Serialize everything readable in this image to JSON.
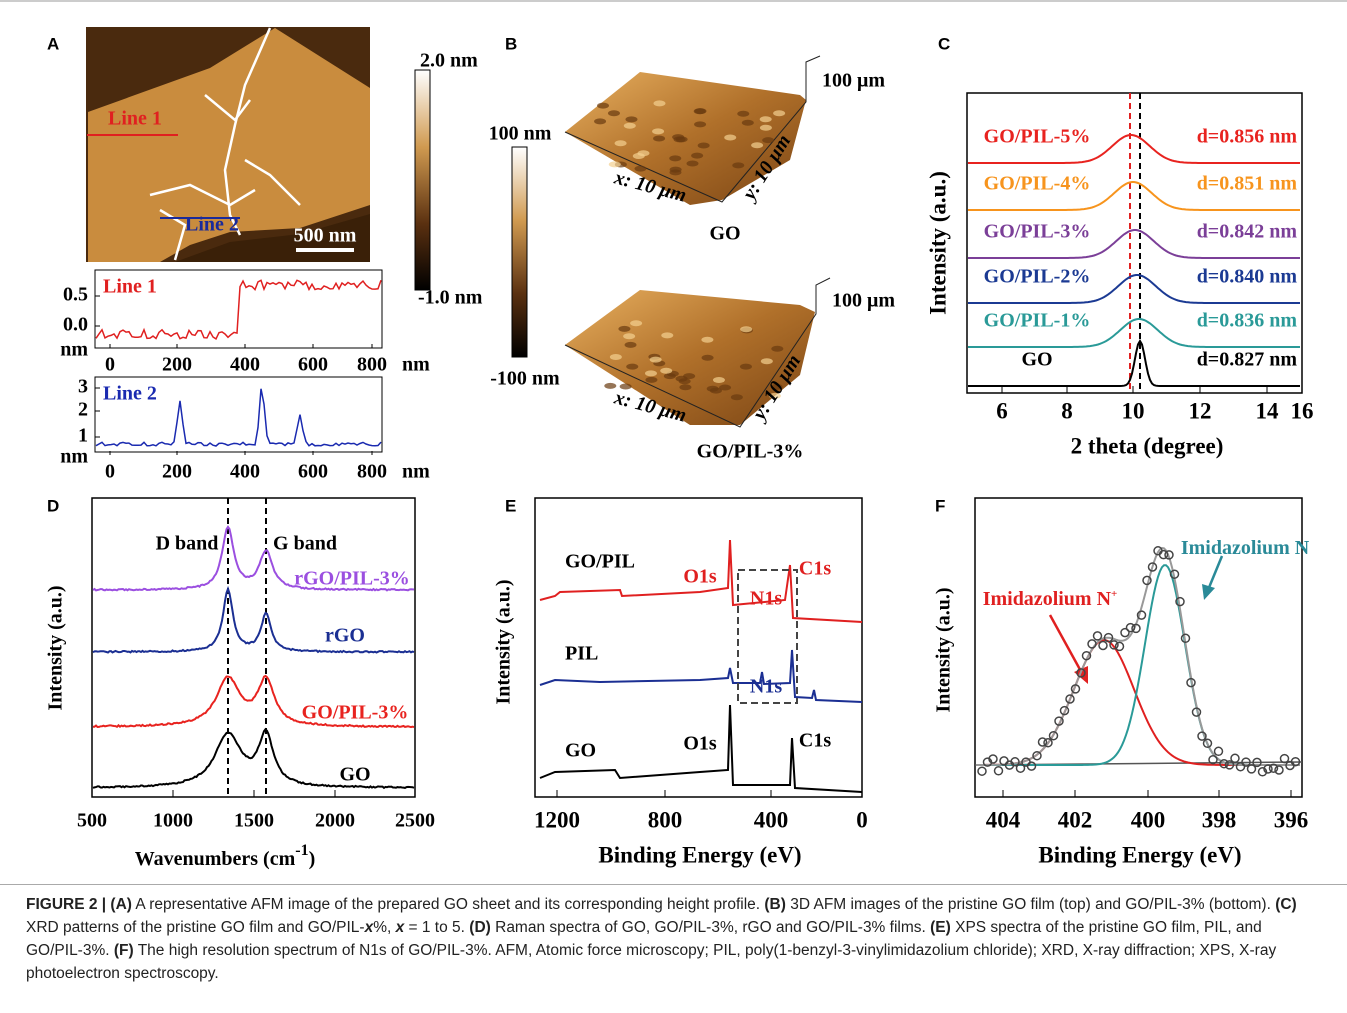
{
  "figure": {
    "A": {
      "label": "A",
      "colorbar_max": "2.0 nm",
      "colorbar_min": "-1.0 nm",
      "line1": "Line 1",
      "line2": "Line 2",
      "scale_bar": "500 nm",
      "profile1": {
        "name": "Line 1",
        "yticks": [
          "0.5",
          "0.0"
        ],
        "y_unit": "nm",
        "xticks": [
          "0",
          "200",
          "400",
          "600",
          "800"
        ],
        "x_unit": "nm"
      },
      "profile2": {
        "name": "Line 2",
        "yticks": [
          "3",
          "2",
          "1"
        ],
        "y_unit": "nm",
        "xticks": [
          "0",
          "200",
          "400",
          "600",
          "800"
        ],
        "x_unit": "nm"
      }
    },
    "B": {
      "label": "B",
      "colorbar_max": "100 nm",
      "colorbar_min": "-100 nm",
      "top": {
        "z": "100 μm",
        "x": "x: 10 μm",
        "y": "y: 10 μm",
        "name": "GO"
      },
      "bottom": {
        "z": "100 μm",
        "x": "x: 10 μm",
        "y": "y: 10 μm",
        "name": "GO/PIL-3%"
      }
    },
    "C": {
      "label": "C",
      "y_label": "Intensity (a.u.)",
      "x_label": "2 theta (degree)",
      "xticks": [
        "6",
        "8",
        "10",
        "12",
        "14",
        "16"
      ],
      "samples": [
        {
          "name": "GO/PIL-5%",
          "d": "d=0.856 nm"
        },
        {
          "name": "GO/PIL-4%",
          "d": "d=0.851 nm"
        },
        {
          "name": "GO/PIL-3%",
          "d": "d=0.842 nm"
        },
        {
          "name": "GO/PIL-2%",
          "d": "d=0.840 nm"
        },
        {
          "name": "GO/PIL-1%",
          "d": "d=0.836 nm"
        },
        {
          "name": "GO",
          "d": "d=0.827 nm"
        }
      ]
    },
    "D": {
      "label": "D",
      "y_label": "Intensity (a.u.)",
      "x_label": [
        "Wavenumbers (cm",
        "-1",
        ")"
      ],
      "xticks": [
        "500",
        "1000",
        "1500",
        "2000",
        "2500"
      ],
      "bands": [
        "D band",
        "G band"
      ],
      "samples": [
        "rGO/PIL-3%",
        "rGO",
        "GO/PIL-3%",
        "GO"
      ]
    },
    "E": {
      "label": "E",
      "y_label": "Intensity (a.u.)",
      "x_label": "Binding Energy (eV)",
      "xticks": [
        "1200",
        "800",
        "400",
        "0"
      ],
      "samples": [
        "GO/PIL",
        "PIL",
        "GO"
      ],
      "peaks": [
        [
          "O1s",
          "N1s",
          "C1s"
        ],
        [
          "N1s"
        ],
        [
          "O1s",
          "C1s"
        ]
      ]
    },
    "F": {
      "label": "F",
      "y_label": "Intensity (a.u.)",
      "x_label": "Binding Energy (eV)",
      "xticks": [
        "404",
        "402",
        "400",
        "398",
        "396"
      ],
      "components": [
        [
          "Imidazolium N",
          "+"
        ],
        [
          "Imidazolium N"
        ]
      ]
    }
  },
  "caption": [
    "FIGURE 2 | (A)",
    " A representative AFM image of the prepared GO sheet and its corresponding height profile. ",
    "(B)",
    " 3D AFM images of the pristine GO film (top) and GO/PIL-3% (bottom). ",
    "(C)",
    " XRD patterns of the pristine GO film and GO/PIL-",
    "x",
    "%, ",
    "x",
    " = 1 to 5. ",
    "(D)",
    " Raman spectra of GO, GO/PIL-3%, rGO and GO/PIL-3% films. ",
    "(E)",
    " XPS spectra of the pristine GO film, PIL, and GO/PIL-3%. ",
    "(F)",
    " The high resolution spectrum of N1s of GO/PIL-3%. AFM, Atomic force microscopy; PIL, poly(1-benzyl-3-vinylimidazolium chloride); XRD, X-ray diffraction; XPS, X-ray photoelectron spectroscopy."
  ]
}
